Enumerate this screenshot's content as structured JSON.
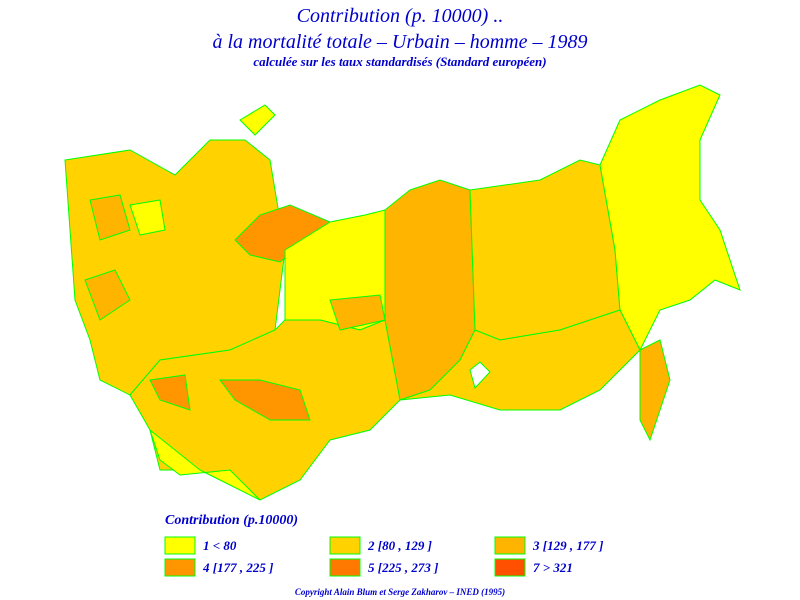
{
  "header": {
    "title": "Contribution  (p. 10000) ..",
    "subtitle": "à  la  mortalité totale  –  Urbain  –  homme  –  1989",
    "note": "calculée sur les taux standardisés (Standard européen)"
  },
  "legend": {
    "title": "Contribution (p.10000)",
    "items": [
      {
        "label": "1  <  80",
        "color": "#ffff00"
      },
      {
        "label": "2 [80 , 129 ]",
        "color": "#ffd200"
      },
      {
        "label": "3 [129 , 177 ]",
        "color": "#ffb400"
      },
      {
        "label": "4 [177 , 225 ]",
        "color": "#ff9600"
      },
      {
        "label": "5 [225 , 273 ]",
        "color": "#ff7800"
      },
      {
        "label": "7  >  321",
        "color": "#ff5000"
      }
    ]
  },
  "footer": {
    "copyright": "Copyright Alain Blum et Serge Zakharov – INED (1995)"
  }
}
